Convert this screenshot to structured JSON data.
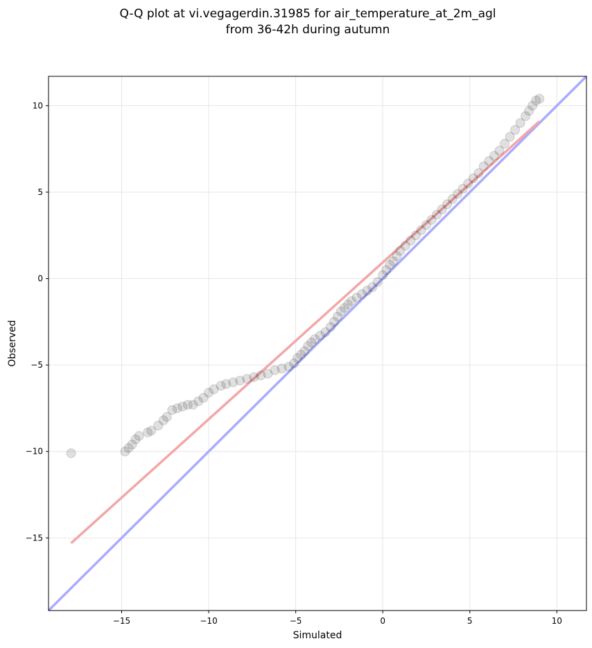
{
  "chart_data": {
    "type": "scatter",
    "title_line1": "Q-Q plot at vi.vegagerdin.31985 for air_temperature_at_2m_agl",
    "title_line2": "from 36-42h during autumn",
    "xlabel": "Simulated",
    "ylabel": "Observed",
    "xlim": [
      -19.2,
      11.7
    ],
    "ylim": [
      -19.2,
      11.7
    ],
    "xticks": [
      -15,
      -10,
      -5,
      0,
      5,
      10
    ],
    "yticks": [
      -15,
      -10,
      -5,
      0,
      5,
      10
    ],
    "xtick_labels": [
      "−15",
      "−10",
      "−5",
      "0",
      "5",
      "10"
    ],
    "ytick_labels": [
      "−15",
      "−10",
      "−5",
      "0",
      "5",
      "10"
    ],
    "grid": true,
    "reference_line": {
      "color": "#aaaaff",
      "x": [
        -19.2,
        11.7
      ],
      "y": [
        -19.2,
        11.7
      ]
    },
    "fit_line": {
      "color": "#f4a6a6",
      "x": [
        -17.9,
        9.0
      ],
      "y": [
        -15.3,
        9.1
      ]
    },
    "points_color": "#000000",
    "points": [
      [
        -17.9,
        -10.1
      ],
      [
        -14.8,
        -10.0
      ],
      [
        -14.6,
        -9.8
      ],
      [
        -14.4,
        -9.6
      ],
      [
        -14.2,
        -9.3
      ],
      [
        -14.0,
        -9.1
      ],
      [
        -13.5,
        -8.9
      ],
      [
        -13.3,
        -8.8
      ],
      [
        -12.9,
        -8.5
      ],
      [
        -12.6,
        -8.2
      ],
      [
        -12.4,
        -8.0
      ],
      [
        -12.1,
        -7.6
      ],
      [
        -11.8,
        -7.5
      ],
      [
        -11.5,
        -7.4
      ],
      [
        -11.2,
        -7.3
      ],
      [
        -10.9,
        -7.3
      ],
      [
        -10.6,
        -7.1
      ],
      [
        -10.3,
        -6.9
      ],
      [
        -10.0,
        -6.6
      ],
      [
        -9.7,
        -6.4
      ],
      [
        -9.3,
        -6.2
      ],
      [
        -9.0,
        -6.1
      ],
      [
        -8.6,
        -6.0
      ],
      [
        -8.2,
        -5.9
      ],
      [
        -7.8,
        -5.8
      ],
      [
        -7.4,
        -5.7
      ],
      [
        -7.0,
        -5.6
      ],
      [
        -6.6,
        -5.5
      ],
      [
        -6.2,
        -5.3
      ],
      [
        -5.8,
        -5.2
      ],
      [
        -5.4,
        -5.1
      ],
      [
        -5.1,
        -4.9
      ],
      [
        -4.9,
        -4.6
      ],
      [
        -4.7,
        -4.4
      ],
      [
        -4.5,
        -4.2
      ],
      [
        -4.3,
        -3.9
      ],
      [
        -4.1,
        -3.7
      ],
      [
        -3.9,
        -3.5
      ],
      [
        -3.6,
        -3.3
      ],
      [
        -3.3,
        -3.1
      ],
      [
        -3.0,
        -2.8
      ],
      [
        -2.8,
        -2.5
      ],
      [
        -2.6,
        -2.2
      ],
      [
        -2.4,
        -1.9
      ],
      [
        -2.2,
        -1.7
      ],
      [
        -2.0,
        -1.5
      ],
      [
        -1.8,
        -1.3
      ],
      [
        -1.5,
        -1.1
      ],
      [
        -1.2,
        -0.9
      ],
      [
        -0.9,
        -0.7
      ],
      [
        -0.6,
        -0.5
      ],
      [
        -0.3,
        -0.2
      ],
      [
        0.0,
        0.2
      ],
      [
        0.2,
        0.5
      ],
      [
        0.4,
        0.8
      ],
      [
        0.6,
        1.0
      ],
      [
        0.8,
        1.3
      ],
      [
        1.0,
        1.6
      ],
      [
        1.3,
        1.9
      ],
      [
        1.6,
        2.2
      ],
      [
        1.9,
        2.5
      ],
      [
        2.2,
        2.8
      ],
      [
        2.5,
        3.1
      ],
      [
        2.8,
        3.4
      ],
      [
        3.1,
        3.7
      ],
      [
        3.4,
        4.0
      ],
      [
        3.7,
        4.3
      ],
      [
        4.0,
        4.6
      ],
      [
        4.3,
        4.9
      ],
      [
        4.6,
        5.2
      ],
      [
        4.9,
        5.5
      ],
      [
        5.2,
        5.8
      ],
      [
        5.5,
        6.1
      ],
      [
        5.8,
        6.5
      ],
      [
        6.1,
        6.8
      ],
      [
        6.4,
        7.1
      ],
      [
        6.7,
        7.4
      ],
      [
        7.0,
        7.8
      ],
      [
        7.3,
        8.2
      ],
      [
        7.6,
        8.6
      ],
      [
        7.9,
        9.0
      ],
      [
        8.2,
        9.4
      ],
      [
        8.4,
        9.7
      ],
      [
        8.6,
        10.0
      ],
      [
        8.8,
        10.3
      ],
      [
        9.0,
        10.4
      ]
    ]
  }
}
